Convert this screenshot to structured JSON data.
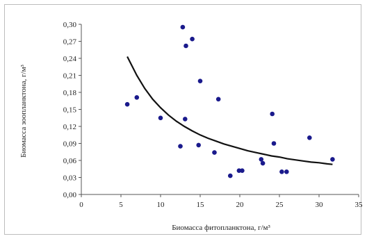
{
  "chart_data": {
    "type": "scatter",
    "xlabel": "Биомасса фитопланктона, г/м³",
    "ylabel": "Биомасса зоопланктона, г/м³",
    "xlim": [
      0,
      35
    ],
    "ylim": [
      0,
      0.3
    ],
    "x_ticks": [
      "0",
      "5",
      "10",
      "15",
      "20",
      "25",
      "30",
      "35"
    ],
    "y_ticks": [
      "0,00",
      "0,03",
      "0,06",
      "0,09",
      "0,12",
      "0,15",
      "0,18",
      "0,21",
      "0,24",
      "0,27",
      "0,30"
    ],
    "grid": false,
    "legend": "none",
    "points": [
      {
        "x": 5.8,
        "y": 0.159
      },
      {
        "x": 7.0,
        "y": 0.171
      },
      {
        "x": 10.0,
        "y": 0.135
      },
      {
        "x": 12.5,
        "y": 0.085
      },
      {
        "x": 12.8,
        "y": 0.295
      },
      {
        "x": 13.1,
        "y": 0.133
      },
      {
        "x": 13.2,
        "y": 0.262
      },
      {
        "x": 14.0,
        "y": 0.274
      },
      {
        "x": 14.8,
        "y": 0.087
      },
      {
        "x": 15.0,
        "y": 0.2
      },
      {
        "x": 16.8,
        "y": 0.074
      },
      {
        "x": 17.3,
        "y": 0.168
      },
      {
        "x": 18.8,
        "y": 0.033
      },
      {
        "x": 19.9,
        "y": 0.042
      },
      {
        "x": 20.3,
        "y": 0.042
      },
      {
        "x": 22.7,
        "y": 0.062
      },
      {
        "x": 22.9,
        "y": 0.055
      },
      {
        "x": 24.1,
        "y": 0.142
      },
      {
        "x": 24.3,
        "y": 0.09
      },
      {
        "x": 25.3,
        "y": 0.04
      },
      {
        "x": 25.9,
        "y": 0.04
      },
      {
        "x": 28.8,
        "y": 0.1
      },
      {
        "x": 31.7,
        "y": 0.062
      }
    ],
    "trendline": {
      "x": [
        5.8,
        7,
        8,
        9,
        10,
        11,
        12,
        13,
        14,
        15,
        16,
        17,
        18,
        19,
        20,
        21,
        22,
        23,
        24,
        25,
        26,
        27,
        28,
        29,
        30,
        31,
        31.7
      ],
      "y": [
        0.243,
        0.21,
        0.187,
        0.168,
        0.153,
        0.14,
        0.129,
        0.12,
        0.112,
        0.105,
        0.099,
        0.094,
        0.089,
        0.085,
        0.081,
        0.077,
        0.074,
        0.071,
        0.068,
        0.066,
        0.063,
        0.061,
        0.059,
        0.057,
        0.056,
        0.054,
        0.053
      ]
    },
    "colors": {
      "points": "#1a1a8c",
      "trendline": "#111111",
      "axis": "#555555"
    }
  }
}
